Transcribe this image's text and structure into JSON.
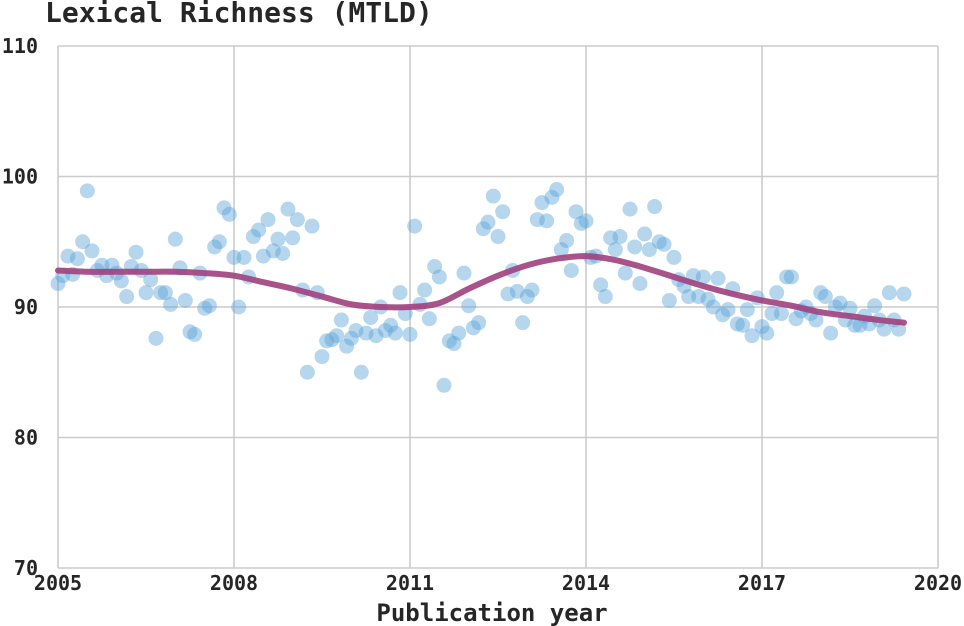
{
  "chart_data": {
    "type": "scatter",
    "title": "Lexical Richness (MTLD)",
    "xlabel": "Publication year",
    "ylabel": "",
    "xlim": [
      2005,
      2020
    ],
    "ylim": [
      70,
      110
    ],
    "x_ticks": [
      2005,
      2008,
      2011,
      2014,
      2017,
      2020
    ],
    "y_ticks": [
      70,
      80,
      90,
      100,
      110
    ],
    "grid": true,
    "colors": {
      "points": "#5aa5d6",
      "trend": "#a0407e"
    },
    "series": [
      {
        "type": "scatter",
        "x": [
          2005.0,
          2005.08,
          2005.17,
          2005.25,
          2005.33,
          2005.42,
          2005.5,
          2005.58,
          2005.67,
          2005.75,
          2005.83,
          2005.92,
          2006.0,
          2006.08,
          2006.17,
          2006.25,
          2006.33,
          2006.42,
          2006.5,
          2006.58,
          2006.67,
          2006.75,
          2006.83,
          2006.92,
          2007.0,
          2007.08,
          2007.17,
          2007.25,
          2007.33,
          2007.42,
          2007.5,
          2007.58,
          2007.67,
          2007.75,
          2007.83,
          2007.92,
          2008.0,
          2008.08,
          2008.17,
          2008.25,
          2008.33,
          2008.42,
          2008.5,
          2008.58,
          2008.67,
          2008.75,
          2008.83,
          2008.92,
          2009.0,
          2009.08,
          2009.17,
          2009.25,
          2009.33,
          2009.42,
          2009.5,
          2009.58,
          2009.67,
          2009.75,
          2009.83,
          2009.92,
          2010.0,
          2010.08,
          2010.17,
          2010.25,
          2010.33,
          2010.42,
          2010.5,
          2010.58,
          2010.67,
          2010.75,
          2010.83,
          2010.92,
          2011.0,
          2011.08,
          2011.17,
          2011.25,
          2011.33,
          2011.42,
          2011.5,
          2011.58,
          2011.67,
          2011.75,
          2011.83,
          2011.92,
          2012.0,
          2012.08,
          2012.17,
          2012.25,
          2012.33,
          2012.42,
          2012.5,
          2012.58,
          2012.67,
          2012.75,
          2012.83,
          2012.92,
          2013.0,
          2013.08,
          2013.17,
          2013.25,
          2013.33,
          2013.42,
          2013.5,
          2013.58,
          2013.67,
          2013.75,
          2013.83,
          2013.92,
          2014.0,
          2014.08,
          2014.17,
          2014.25,
          2014.33,
          2014.42,
          2014.5,
          2014.58,
          2014.67,
          2014.75,
          2014.83,
          2014.92,
          2015.0,
          2015.08,
          2015.17,
          2015.25,
          2015.33,
          2015.42,
          2015.5,
          2015.58,
          2015.67,
          2015.75,
          2015.83,
          2015.92,
          2016.0,
          2016.08,
          2016.17,
          2016.25,
          2016.33,
          2016.42,
          2016.5,
          2016.58,
          2016.67,
          2016.75,
          2016.83,
          2016.92,
          2017.0,
          2017.08,
          2017.17,
          2017.25,
          2017.33,
          2017.42,
          2017.5,
          2017.58,
          2017.67,
          2017.75,
          2017.83,
          2017.92,
          2018.0,
          2018.08,
          2018.17,
          2018.25,
          2018.33,
          2018.42,
          2018.5,
          2018.58,
          2018.67,
          2018.75,
          2018.83,
          2018.92,
          2019.0,
          2019.08,
          2019.17,
          2019.25,
          2019.33,
          2019.42
        ],
        "y": [
          91.8,
          92.4,
          93.9,
          92.5,
          93.7,
          95.0,
          98.9,
          94.3,
          92.8,
          93.2,
          92.4,
          93.2,
          92.6,
          92.0,
          90.8,
          93.1,
          94.2,
          92.8,
          91.1,
          92.1,
          87.6,
          91.1,
          91.1,
          90.2,
          95.2,
          93.0,
          90.5,
          88.1,
          87.9,
          92.6,
          89.9,
          90.1,
          94.6,
          95.0,
          97.6,
          97.1,
          93.8,
          90.0,
          93.8,
          92.3,
          95.4,
          95.9,
          93.9,
          96.7,
          94.3,
          95.2,
          94.1,
          97.5,
          95.3,
          96.7,
          91.3,
          85.0,
          96.2,
          91.1,
          86.2,
          87.4,
          87.5,
          87.8,
          89.0,
          87.0,
          87.6,
          88.2,
          85.0,
          88.0,
          89.2,
          87.8,
          90.0,
          88.2,
          88.6,
          88.0,
          91.1,
          89.5,
          87.9,
          96.2,
          90.2,
          91.3,
          89.1,
          93.1,
          92.3,
          84.0,
          87.4,
          87.2,
          88.0,
          92.6,
          90.1,
          88.4,
          88.8,
          96.0,
          96.5,
          98.5,
          95.4,
          97.3,
          91.0,
          92.8,
          91.2,
          88.8,
          90.8,
          91.3,
          96.7,
          98.0,
          96.6,
          98.4,
          99.0,
          94.4,
          95.1,
          92.8,
          97.3,
          96.4,
          96.6,
          93.8,
          93.9,
          91.7,
          90.8,
          95.3,
          94.4,
          95.4,
          92.6,
          97.5,
          94.6,
          91.8,
          95.6,
          94.4,
          97.7,
          95.0,
          94.8,
          90.5,
          93.8,
          92.1,
          91.6,
          90.8,
          92.4,
          90.8,
          92.3,
          90.6,
          90.0,
          92.2,
          89.4,
          89.8,
          91.4,
          88.7,
          88.6,
          89.8,
          87.8,
          90.7,
          88.5,
          88.0,
          89.5,
          91.1,
          89.5,
          92.3,
          92.3,
          89.1,
          89.7,
          90.0,
          89.5,
          89.0,
          91.1,
          90.8,
          88.0,
          90.0,
          90.3,
          89.0,
          89.9,
          88.6,
          88.6,
          89.3,
          88.7,
          90.1,
          89.0,
          88.3,
          91.1,
          89.0,
          88.3,
          91.0
        ]
      },
      {
        "type": "line",
        "x": [
          2005.0,
          2005.5,
          2006.0,
          2006.5,
          2007.0,
          2007.5,
          2008.0,
          2008.5,
          2009.0,
          2009.5,
          2010.0,
          2010.5,
          2011.0,
          2011.5,
          2012.0,
          2012.5,
          2013.0,
          2013.5,
          2014.0,
          2014.5,
          2015.0,
          2015.5,
          2016.0,
          2016.5,
          2017.0,
          2017.5,
          2018.0,
          2018.5,
          2019.0,
          2019.42
        ],
        "y": [
          92.8,
          92.7,
          92.7,
          92.7,
          92.7,
          92.6,
          92.4,
          91.9,
          91.4,
          90.8,
          90.2,
          90.0,
          90.0,
          90.3,
          91.4,
          92.4,
          93.2,
          93.7,
          93.9,
          93.6,
          93.0,
          92.3,
          91.6,
          91.0,
          90.5,
          90.1,
          89.6,
          89.3,
          89.0,
          88.8
        ]
      }
    ]
  }
}
